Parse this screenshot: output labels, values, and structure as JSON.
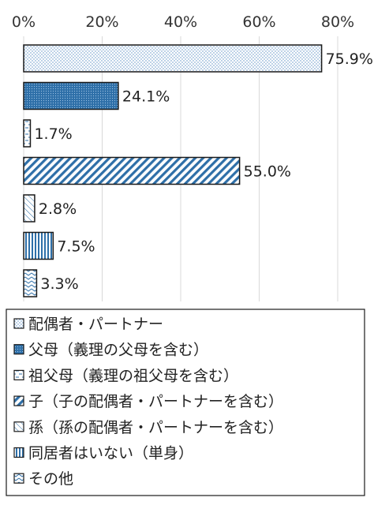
{
  "chart_data": {
    "type": "bar",
    "orientation": "horizontal",
    "categories": [
      "配偶者・パートナー",
      "父母（義理の父母を含む）",
      "祖父母（義理の祖父母を含む）",
      "子（子の配偶者・パートナーを含む）",
      "孫（孫の配偶者・パートナーを含む）",
      "同居者はいない（単身）",
      "その他"
    ],
    "values": [
      75.9,
      24.1,
      1.7,
      55.0,
      2.8,
      7.5,
      3.3
    ],
    "data_labels": [
      "75.9%",
      "24.1%",
      "1.7%",
      "55.0%",
      "2.8%",
      "7.5%",
      "3.3%"
    ],
    "x_ticks": [
      0,
      20,
      40,
      60,
      80
    ],
    "x_tick_labels": [
      "0%",
      "20%",
      "40%",
      "60%",
      "80%"
    ],
    "xlim": [
      0,
      80
    ],
    "grid": true,
    "legend_position": "bottom",
    "colors": {
      "border": "#1a1a1a",
      "dark_blue": "#2e6fa8",
      "light_blue": "#9ec2e4",
      "grid": "#d9d9d9"
    }
  }
}
